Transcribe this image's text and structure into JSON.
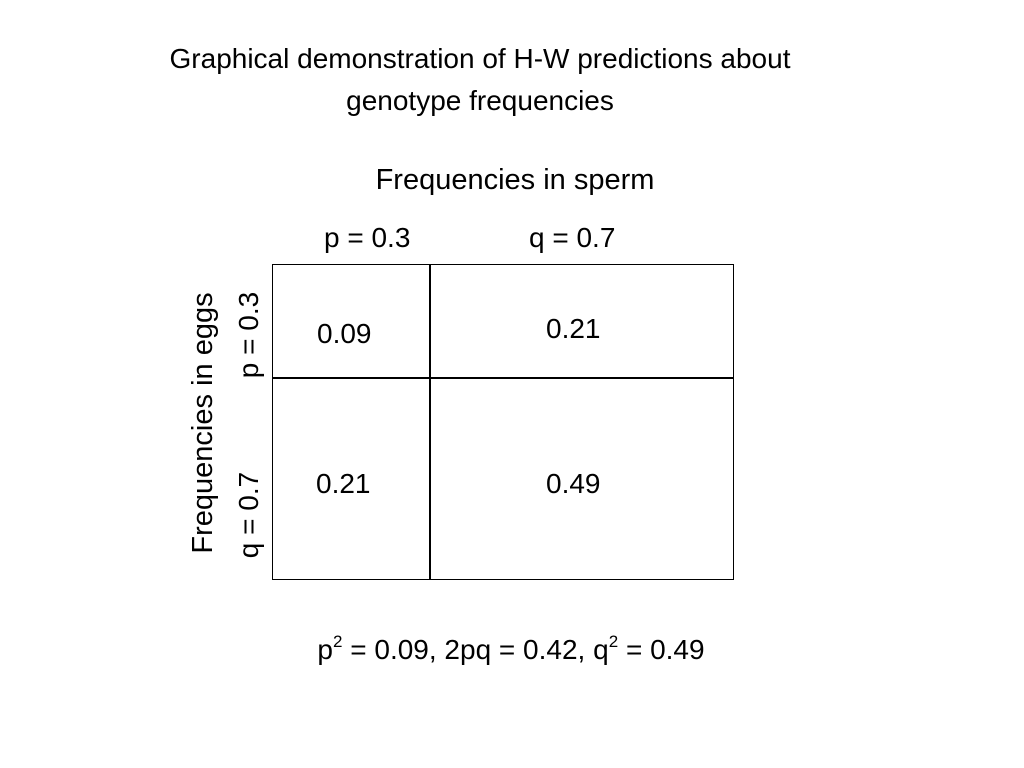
{
  "title": {
    "line1": "Graphical demonstration of H-W predictions about",
    "line2": "genotype frequencies"
  },
  "sperm_label": "Frequencies in sperm",
  "columns": {
    "p_label": "p = 0.3",
    "q_label": "q = 0.7"
  },
  "eggs_label": "Frequencies in eggs",
  "rows": {
    "p_label": "p = 0.3",
    "q_label": "q = 0.7"
  },
  "cells": {
    "pp": "0.09",
    "pq": "0.21",
    "qp": "0.21",
    "qq": "0.49"
  },
  "equation": {
    "p2_base": "p",
    "p2_exp": "2",
    "p2_value": " = 0.09, 2pq = 0.42, ",
    "q2_base": "q",
    "q2_exp": "2",
    "q2_value": " = 0.49"
  }
}
